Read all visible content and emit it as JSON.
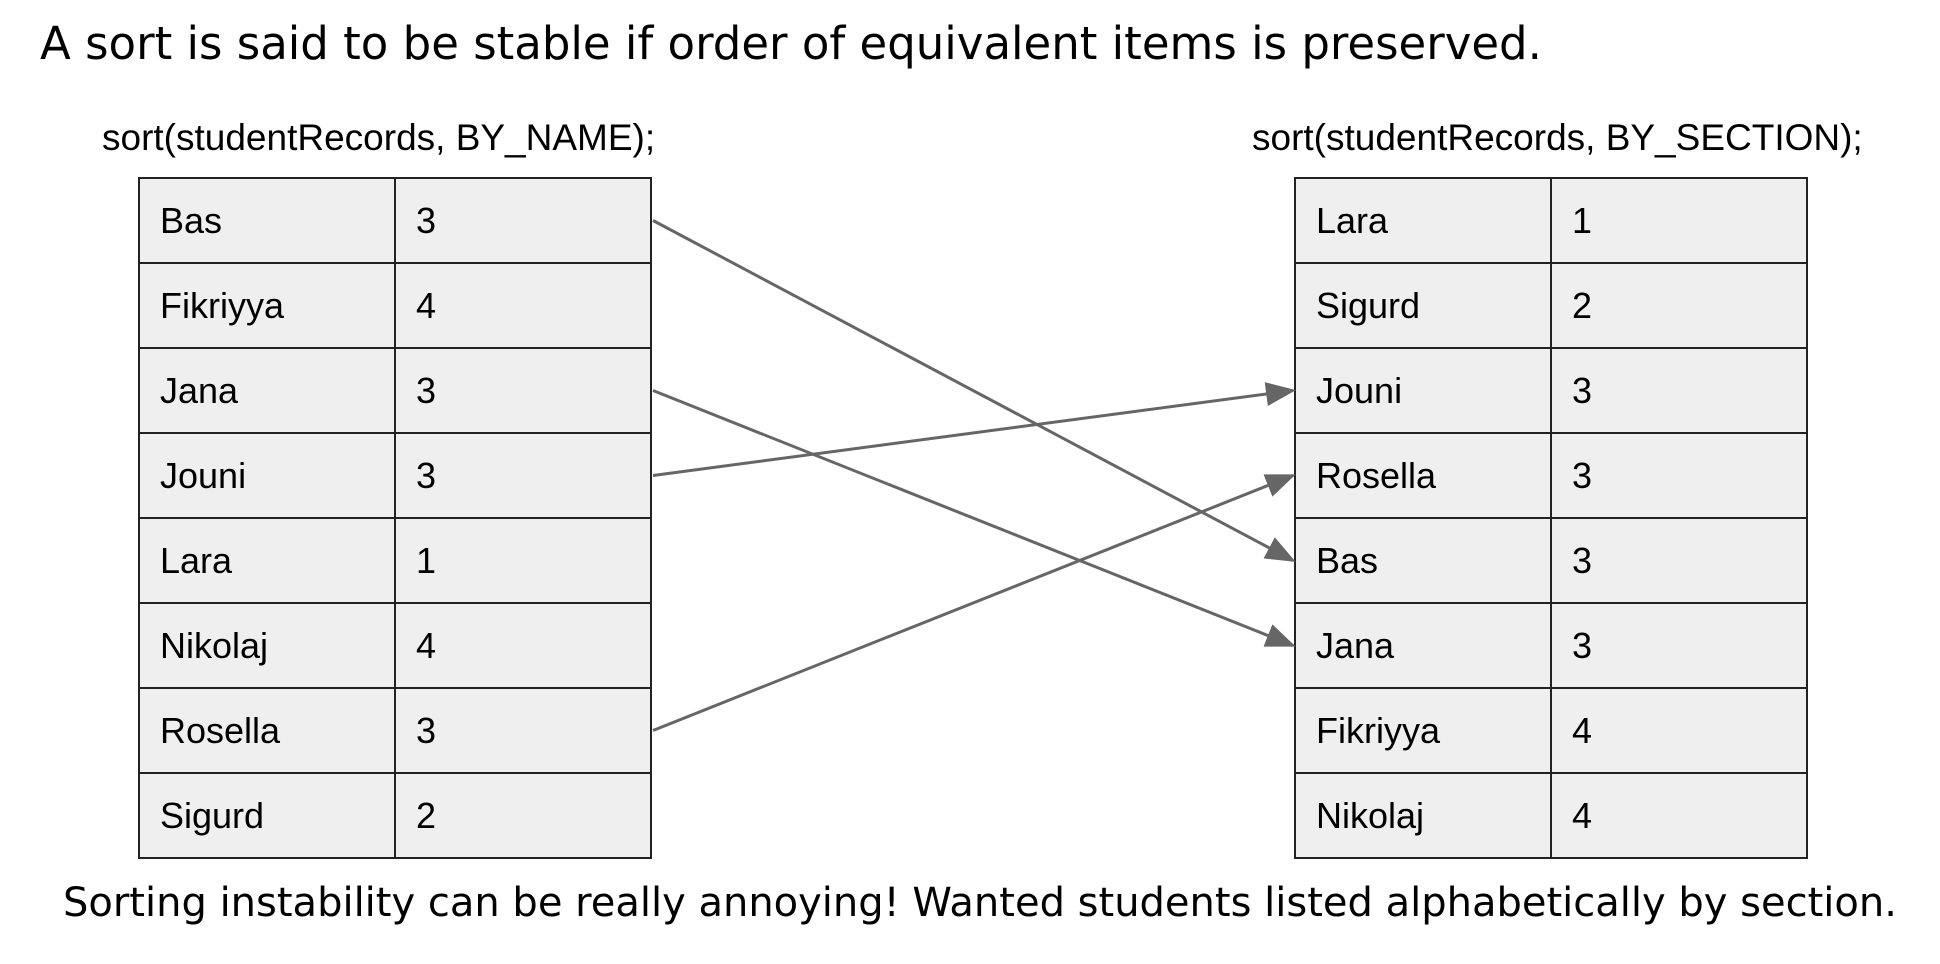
{
  "headline": "A sort is said to be stable if order of equivalent items is preserved.",
  "footer": "Sorting instability can be really annoying! Wanted students listed alphabetically by section.",
  "left_table": {
    "label": "sort(studentRecords, BY_NAME);",
    "rows": [
      {
        "name": "Bas",
        "section": "3"
      },
      {
        "name": "Fikriyya",
        "section": "4"
      },
      {
        "name": "Jana",
        "section": "3"
      },
      {
        "name": "Jouni",
        "section": "3"
      },
      {
        "name": "Lara",
        "section": "1"
      },
      {
        "name": "Nikolaj",
        "section": "4"
      },
      {
        "name": "Rosella",
        "section": "3"
      },
      {
        "name": "Sigurd",
        "section": "2"
      }
    ]
  },
  "right_table": {
    "label": "sort(studentRecords, BY_SECTION);",
    "rows": [
      {
        "name": "Lara",
        "section": "1"
      },
      {
        "name": "Sigurd",
        "section": "2"
      },
      {
        "name": "Jouni",
        "section": "3"
      },
      {
        "name": "Rosella",
        "section": "3"
      },
      {
        "name": "Bas",
        "section": "3"
      },
      {
        "name": "Jana",
        "section": "3"
      },
      {
        "name": "Fikriyya",
        "section": "4"
      },
      {
        "name": "Nikolaj",
        "section": "4"
      }
    ]
  },
  "arrows": [
    {
      "from_row": 0,
      "to_row": 4
    },
    {
      "from_row": 2,
      "to_row": 5
    },
    {
      "from_row": 3,
      "to_row": 2
    },
    {
      "from_row": 6,
      "to_row": 3
    }
  ],
  "colors": {
    "arrow": "#666666",
    "cell_fill": "#efefef",
    "cell_border": "#222222"
  }
}
